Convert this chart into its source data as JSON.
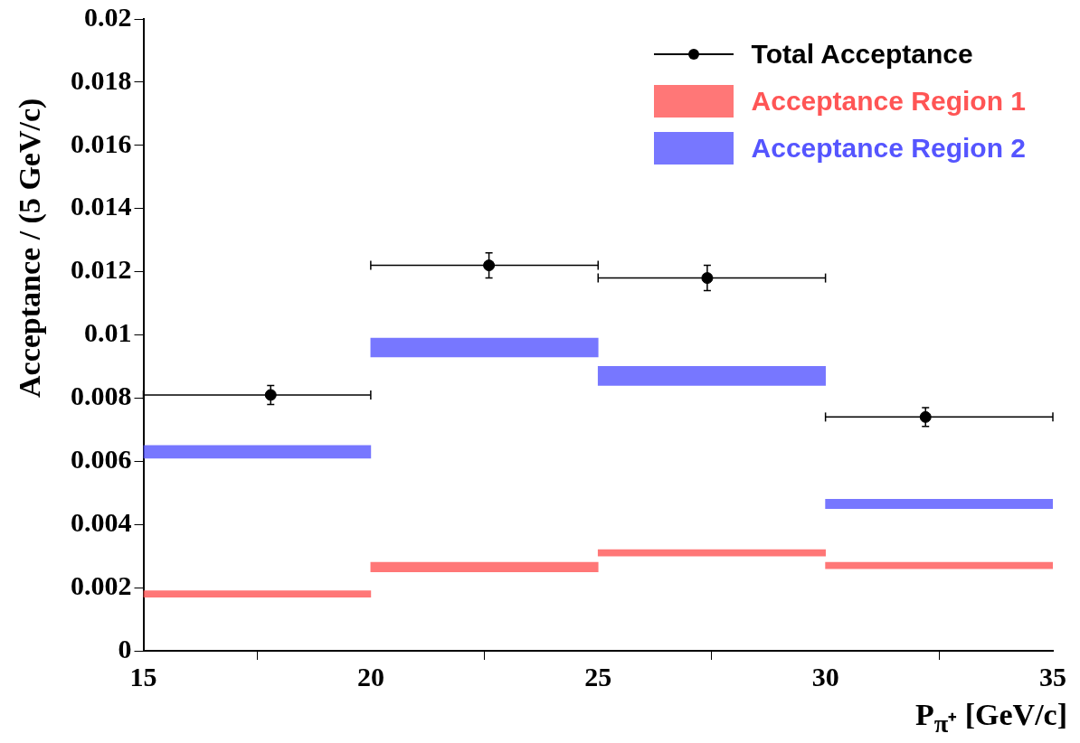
{
  "chart_data": {
    "type": "scatter",
    "xlabel": "P$_{π⁺}$ [GeV/c]",
    "ylabel": "Acceptance / (5 GeV/c)",
    "xlim": [
      15,
      35
    ],
    "xticks": [
      15,
      20,
      25,
      30,
      35
    ],
    "ylim": [
      0,
      0.02
    ],
    "yticks": [
      0,
      0.002,
      0.004,
      0.006,
      0.008,
      0.01,
      0.012,
      0.014,
      0.016,
      0.018,
      0.02
    ],
    "grid": false,
    "legend": "top right",
    "marker": "circle",
    "series": [
      {
        "name": "Total Acceptance",
        "color": "#000000",
        "x": [
          17.8,
          22.6,
          27.4,
          32.2
        ],
        "values": [
          0.0081,
          0.0122,
          0.0118,
          0.0074
        ],
        "errors": [
          0.0003,
          0.0004,
          0.0004,
          0.0003
        ],
        "xerrors": [
          [
            15,
            20
          ],
          [
            20,
            25
          ],
          [
            25,
            30
          ],
          [
            30,
            35
          ]
        ]
      },
      {
        "name": "Acceptance Region 1",
        "type": "bar",
        "color": "#ff5555",
        "x": [
          17.5,
          22.5,
          27.5,
          32.5
        ],
        "base": [
          0.0017,
          0.0025,
          0.003,
          0.0026
        ],
        "values": [
          0.0002,
          0.0003,
          0.0002,
          0.0002
        ]
      },
      {
        "name": "Acceptance Region 2",
        "type": "bar",
        "color": "#5555ff",
        "x": [
          17.5,
          22.5,
          27.5,
          32.5
        ],
        "base": [
          0.0061,
          0.0093,
          0.0084,
          0.0045
        ],
        "values": [
          0.0004,
          0.0006,
          0.0006,
          0.0003
        ]
      }
    ]
  }
}
